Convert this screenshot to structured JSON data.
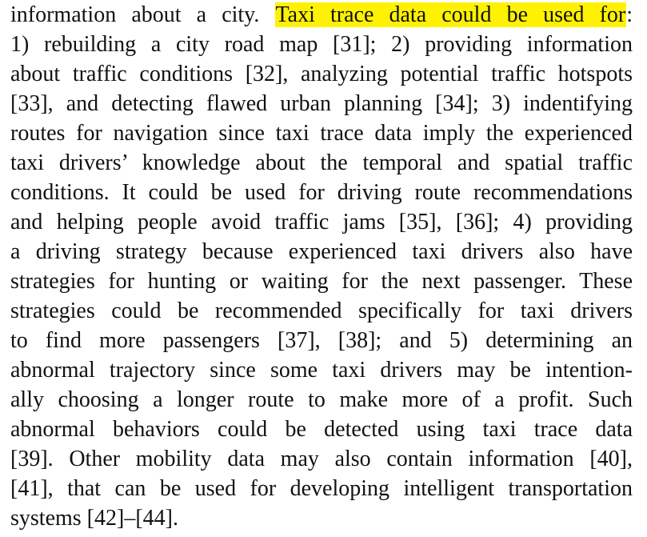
{
  "highlight_color": "#fff200",
  "paragraph": {
    "line_01_pre": "information about a city.",
    "line_01_highlight": "Taxi trace data could be used for",
    "line_01_post": ":",
    "line_02": "1) rebuilding a city road map [31]; 2) providing information",
    "line_03": "about traffic conditions [32], analyzing potential traffic hotspots",
    "line_04": "[33], and detecting flawed urban planning [34]; 3) indentifying",
    "line_05": "routes for navigation since taxi trace data imply the experienced",
    "line_06": "taxi drivers’ knowledge about the temporal and spatial traffic",
    "line_07": "conditions. It could be used for driving route recommendations",
    "line_08": "and helping people avoid traffic jams [35], [36]; 4) providing",
    "line_09": "a driving strategy because experienced taxi drivers also have",
    "line_10": "strategies for hunting or waiting for the next passenger. These",
    "line_11": "strategies could be recommended specifically for taxi drivers",
    "line_12": "to find more passengers [37], [38]; and 5) determining an",
    "line_13": "abnormal trajectory since some taxi drivers may be intention-",
    "line_14": "ally choosing a longer route to make more of a profit. Such",
    "line_15": "abnormal behaviors could be detected using taxi trace data",
    "line_16": "[39]. Other mobility data may also contain information [40],",
    "line_17": "[41], that can be used for developing intelligent transportation",
    "line_18": "systems [42]–[44]."
  }
}
